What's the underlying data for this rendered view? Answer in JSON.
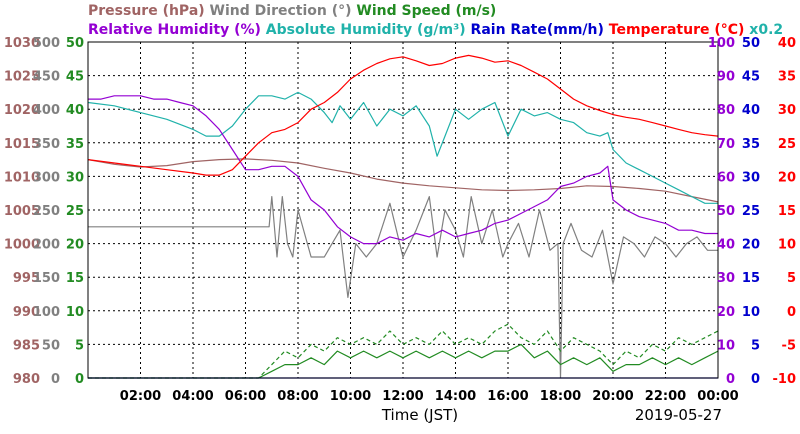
{
  "chart_data": {
    "type": "line",
    "title_lines": [
      [
        {
          "text": "Pressure (hPa)",
          "color": "#a06464"
        },
        {
          "text": "Wind Direction (°)",
          "color": "#808080"
        },
        {
          "text": "Wind Speed (m/s)",
          "color": "#228b22"
        }
      ],
      [
        {
          "text": "Relative Humidity (%)",
          "color": "#9400d3"
        },
        {
          "text": "Absolute Humidity (g/m³)",
          "color": "#20b2aa"
        },
        {
          "text": "Rain Rate(mm/h)",
          "color": "#0000cd"
        },
        {
          "text": "Temperature (°C)",
          "color": "#ff0000"
        },
        {
          "text": "x0.2",
          "color": "#20b2aa"
        }
      ]
    ],
    "xlabel": "Time (JST)",
    "date": "2019-05-27",
    "xlim": [
      0,
      24
    ],
    "x_ticks": [
      "02:00",
      "04:00",
      "06:00",
      "08:00",
      "10:00",
      "12:00",
      "14:00",
      "16:00",
      "18:00",
      "20:00",
      "22:00",
      "00:00"
    ],
    "grid": true,
    "left_axes": [
      {
        "name": "Pressure",
        "color": "#a06464",
        "ticks": [
          "980",
          "985",
          "990",
          "995",
          "1000",
          "1005",
          "1010",
          "1015",
          "1020",
          "1025",
          "1030"
        ],
        "ylim": [
          980,
          1030
        ]
      },
      {
        "name": "Wind Direction",
        "color": "#808080",
        "ticks": [
          "0",
          "50",
          "100",
          "150",
          "200",
          "250",
          "300",
          "350",
          "400",
          "450",
          "500"
        ],
        "ylim": [
          0,
          500
        ]
      },
      {
        "name": "Wind Speed",
        "color": "#228b22",
        "ticks": [
          "0",
          "5",
          "10",
          "15",
          "20",
          "25",
          "30",
          "35",
          "40",
          "45",
          "50"
        ],
        "ylim": [
          0,
          50
        ]
      }
    ],
    "right_axes": [
      {
        "name": "Relative Humidity",
        "color": "#9400d3",
        "ticks": [
          "0",
          "10",
          "20",
          "30",
          "40",
          "50",
          "60",
          "70",
          "80",
          "90",
          "100"
        ],
        "ylim": [
          0,
          100
        ]
      },
      {
        "name": "Rain Rate",
        "color": "#0000cd",
        "ticks": [
          "0",
          "5",
          "10",
          "15",
          "20",
          "25",
          "30",
          "35",
          "40",
          "45",
          "50"
        ],
        "ylim": [
          0,
          50
        ]
      },
      {
        "name": "Temperature",
        "color": "#ff0000",
        "ticks": [
          "-10",
          "-5",
          "0",
          "5",
          "10",
          "15",
          "20",
          "25",
          "30",
          "35",
          "40"
        ],
        "ylim": [
          -10,
          40
        ]
      }
    ],
    "series": [
      {
        "name": "Pressure",
        "color": "#a06464",
        "axis": 0,
        "style": "solid",
        "x": [
          0,
          1,
          2,
          3,
          4,
          5,
          6,
          7,
          8,
          9,
          10,
          11,
          12,
          13,
          14,
          15,
          16,
          17,
          18,
          19,
          20,
          21,
          22,
          23,
          24
        ],
        "y": [
          1012.5,
          1011.8,
          1011.4,
          1011.6,
          1012.2,
          1012.5,
          1012.6,
          1012.4,
          1012.0,
          1011.2,
          1010.5,
          1009.6,
          1009.0,
          1008.6,
          1008.3,
          1008.0,
          1007.9,
          1008.0,
          1008.2,
          1008.6,
          1008.5,
          1008.2,
          1007.8,
          1007.0,
          1006.2
        ]
      },
      {
        "name": "Wind Direction",
        "color": "#808080",
        "axis": 1,
        "style": "solid",
        "x": [
          0,
          6.9,
          7.0,
          7.2,
          7.4,
          7.6,
          7.8,
          8.0,
          8.5,
          9.0,
          9.3,
          9.6,
          9.9,
          10.2,
          10.6,
          11.0,
          11.5,
          12.0,
          12.5,
          13.0,
          13.3,
          13.6,
          14.0,
          14.3,
          14.6,
          15.0,
          15.4,
          15.8,
          16.0,
          16.4,
          16.8,
          17.2,
          17.6,
          17.9,
          18.0,
          18.1,
          18.4,
          18.8,
          19.2,
          19.6,
          19.8,
          20.0,
          20.4,
          20.8,
          21.2,
          21.6,
          22.0,
          22.4,
          22.8,
          23.2,
          23.6,
          24.0
        ],
        "y": [
          225,
          225,
          270,
          180,
          270,
          200,
          180,
          250,
          180,
          180,
          200,
          220,
          120,
          200,
          180,
          200,
          260,
          180,
          220,
          270,
          180,
          250,
          220,
          180,
          270,
          200,
          250,
          180,
          200,
          230,
          180,
          250,
          190,
          200,
          0,
          200,
          230,
          190,
          180,
          220,
          180,
          140,
          210,
          200,
          180,
          210,
          200,
          180,
          200,
          210,
          190,
          190
        ]
      },
      {
        "name": "Wind Speed",
        "color": "#228b22",
        "axis": 2,
        "style": "solid",
        "x": [
          0,
          6.5,
          7,
          7.5,
          8,
          8.5,
          9,
          9.5,
          10,
          10.5,
          11,
          11.5,
          12,
          12.5,
          13,
          13.5,
          14,
          14.5,
          15,
          15.5,
          16,
          16.5,
          17,
          17.5,
          18,
          18.5,
          19,
          19.5,
          20,
          20.5,
          21,
          21.5,
          22,
          22.5,
          23,
          23.5,
          24
        ],
        "y": [
          0,
          0,
          1,
          2,
          2,
          3,
          2,
          4,
          3,
          4,
          3,
          4,
          3,
          4,
          3,
          4,
          3,
          4,
          3,
          4,
          4,
          5,
          3,
          4,
          2,
          3,
          2,
          3,
          1,
          2,
          2,
          3,
          2,
          3,
          2,
          3,
          4
        ]
      },
      {
        "name": "Wind Speed gust",
        "color": "#228b22",
        "axis": 2,
        "style": "dashed",
        "x": [
          0,
          6.5,
          7,
          7.5,
          8,
          8.5,
          9,
          9.5,
          10,
          10.5,
          11,
          11.5,
          12,
          12.5,
          13,
          13.5,
          14,
          14.5,
          15,
          15.5,
          16,
          16.5,
          17,
          17.5,
          18,
          18.5,
          19,
          19.5,
          20,
          20.5,
          21,
          21.5,
          22,
          22.5,
          23,
          23.5,
          24
        ],
        "y": [
          0,
          0,
          2,
          4,
          3,
          5,
          4,
          6,
          5,
          6,
          5,
          7,
          5,
          6,
          5,
          7,
          5,
          6,
          5,
          7,
          8,
          6,
          5,
          7,
          4,
          6,
          5,
          4,
          2,
          4,
          3,
          5,
          4,
          6,
          5,
          6,
          7
        ]
      },
      {
        "name": "Relative Humidity",
        "color": "#9400d3",
        "axis": 3,
        "style": "solid",
        "x": [
          0,
          0.5,
          1,
          1.5,
          2,
          2.5,
          3,
          3.5,
          4,
          4.5,
          5,
          5.5,
          6,
          6.5,
          7,
          7.5,
          8,
          8.5,
          9,
          9.5,
          10,
          10.5,
          11,
          11.5,
          12,
          12.5,
          13,
          13.5,
          14,
          14.5,
          15,
          15.5,
          16,
          16.5,
          17,
          17.5,
          18,
          18.5,
          19,
          19.5,
          19.8,
          20,
          20.5,
          21,
          21.5,
          22,
          22.5,
          23,
          23.5,
          24
        ],
        "y": [
          83,
          83,
          84,
          84,
          84,
          83,
          83,
          82,
          81,
          78,
          74,
          68,
          62,
          62,
          63,
          63,
          60,
          53,
          50,
          45,
          42,
          40,
          40,
          42,
          41,
          43,
          42,
          44,
          42,
          43,
          44,
          46,
          47,
          49,
          51,
          53,
          57,
          58,
          60,
          61,
          63,
          53,
          50,
          48,
          47,
          46,
          44,
          44,
          43,
          43
        ]
      },
      {
        "name": "Absolute Humidity",
        "color": "#20b2aa",
        "axis": 3,
        "style": "solid",
        "x": [
          0,
          1,
          2,
          3,
          4,
          4.5,
          5,
          5.5,
          6,
          6.5,
          7,
          7.5,
          8,
          8.5,
          9,
          9.3,
          9.6,
          10,
          10.5,
          11,
          11.5,
          12,
          12.5,
          13,
          13.3,
          13.6,
          14,
          14.5,
          15,
          15.5,
          16,
          16.5,
          17,
          17.5,
          18,
          18.5,
          19,
          19.5,
          19.8,
          20,
          20.5,
          21,
          21.5,
          22,
          22.5,
          23,
          23.5,
          24
        ],
        "y": [
          82,
          81,
          79,
          77,
          74,
          72,
          72,
          75,
          80,
          84,
          84,
          83,
          85,
          83,
          79,
          76,
          81,
          77,
          82,
          75,
          80,
          78,
          81,
          75,
          66,
          72,
          80,
          77,
          80,
          82,
          72,
          80,
          78,
          79,
          77,
          76,
          73,
          72,
          73,
          68,
          64,
          62,
          60,
          58,
          56,
          54,
          52,
          52
        ]
      },
      {
        "name": "Temperature",
        "color": "#ff0000",
        "axis": 5,
        "style": "solid",
        "x": [
          0,
          1,
          2,
          3,
          4,
          4.5,
          5,
          5.5,
          6,
          6.5,
          7,
          7.5,
          8,
          8.5,
          9,
          9.5,
          10,
          10.5,
          11,
          11.5,
          12,
          12.5,
          13,
          13.5,
          14,
          14.5,
          15,
          15.5,
          16,
          16.5,
          17,
          17.5,
          18,
          18.5,
          19,
          19.5,
          20,
          20.5,
          21,
          21.5,
          22,
          22.5,
          23,
          23.5,
          24
        ],
        "y": [
          22.5,
          22.0,
          21.5,
          21.0,
          20.5,
          20.2,
          20.2,
          21.0,
          23.0,
          25.0,
          26.5,
          27.0,
          28.0,
          30.0,
          31.0,
          32.5,
          34.5,
          35.8,
          36.8,
          37.5,
          37.8,
          37.2,
          36.5,
          36.8,
          37.6,
          38.0,
          37.6,
          37.0,
          37.2,
          36.5,
          35.5,
          34.5,
          33.0,
          31.5,
          30.5,
          29.8,
          29.2,
          28.8,
          28.5,
          28.0,
          27.5,
          27.0,
          26.5,
          26.2,
          26.0
        ]
      },
      {
        "name": "Rain Rate",
        "color": "#0000cd",
        "axis": 4,
        "style": "solid",
        "x": [
          0,
          24
        ],
        "y": [
          0,
          0
        ]
      }
    ]
  }
}
